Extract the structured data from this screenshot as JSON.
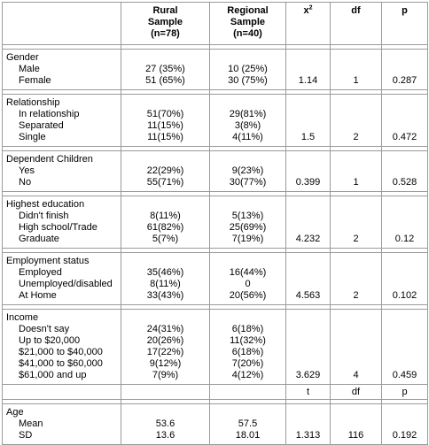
{
  "headers": {
    "rural_line1": "Rural",
    "rural_line2": "Sample",
    "rural_line3": "(n=78)",
    "regional_line1": "Regional",
    "regional_line2": "Sample",
    "regional_line3": "(n=40)",
    "chi": "x",
    "chi_sup": "2",
    "df": "df",
    "p": "p"
  },
  "groups": [
    {
      "title": "Gender",
      "rows": [
        {
          "label": "Male",
          "rural": "27 (35%)",
          "regional": "10 (25%)"
        },
        {
          "label": "Female",
          "rural": "51 (65%)",
          "regional": "30 (75%)"
        }
      ],
      "chi": "1.14",
      "df": "1",
      "p": "0.287"
    },
    {
      "title": "Relationship",
      "rows": [
        {
          "label": "In relationship",
          "rural": "51(70%)",
          "regional": "29(81%)"
        },
        {
          "label": "Separated",
          "rural": "11(15%)",
          "regional": "3(8%)"
        },
        {
          "label": "Single",
          "rural": "11(15%)",
          "regional": "4(11%)"
        }
      ],
      "chi": "1.5",
      "df": "2",
      "p": "0.472"
    },
    {
      "title": "Dependent Children",
      "rows": [
        {
          "label": "Yes",
          "rural": "22(29%)",
          "regional": "9(23%)"
        },
        {
          "label": "No",
          "rural": "55(71%)",
          "regional": "30(77%)"
        }
      ],
      "chi": "0.399",
      "df": "1",
      "p": "0.528"
    },
    {
      "title": "Highest education",
      "rows": [
        {
          "label": "Didn't finish",
          "rural": "8(11%)",
          "regional": "5(13%)"
        },
        {
          "label": "High school/Trade",
          "rural": "61(82%)",
          "regional": "25(69%)"
        },
        {
          "label": "Graduate",
          "rural": "5(7%)",
          "regional": "7(19%)"
        }
      ],
      "chi": "4.232",
      "df": "2",
      "p": "0.12"
    },
    {
      "title": "Employment status",
      "rows": [
        {
          "label": "Employed",
          "rural": "35(46%)",
          "regional": "16(44%)"
        },
        {
          "label": "Unemployed/disabled",
          "rural": "8(11%)",
          "regional": "0"
        },
        {
          "label": "At Home",
          "rural": "33(43%)",
          "regional": "20(56%)"
        }
      ],
      "chi": "4.563",
      "df": "2",
      "p": "0.102"
    },
    {
      "title": "Income",
      "rows": [
        {
          "label": "Doesn't say",
          "rural": "24(31%)",
          "regional": "6(18%)"
        },
        {
          "label": "Up to $20,000",
          "rural": "20(26%)",
          "regional": "11(32%)"
        },
        {
          "label": "$21,000 to $40,000",
          "rural": "17(22%)",
          "regional": "6(18%)"
        },
        {
          "label": "$41,000 to $60,000",
          "rural": "9(12%)",
          "regional": "7(20%)"
        },
        {
          "label": "$61,000 and up",
          "rural": "7(9%)",
          "regional": "4(12%)"
        }
      ],
      "chi": "3.629",
      "df": "4",
      "p": "0.459"
    }
  ],
  "subheader": {
    "t": "t",
    "df": "df",
    "p": "p"
  },
  "age": {
    "title": "Age",
    "rows": [
      {
        "label": "Mean",
        "rural": "53.6",
        "regional": "57.5"
      },
      {
        "label": "SD",
        "rural": "13.6",
        "regional": "18.01"
      }
    ],
    "t": "1.313",
    "df": "116",
    "p": "0.192"
  }
}
